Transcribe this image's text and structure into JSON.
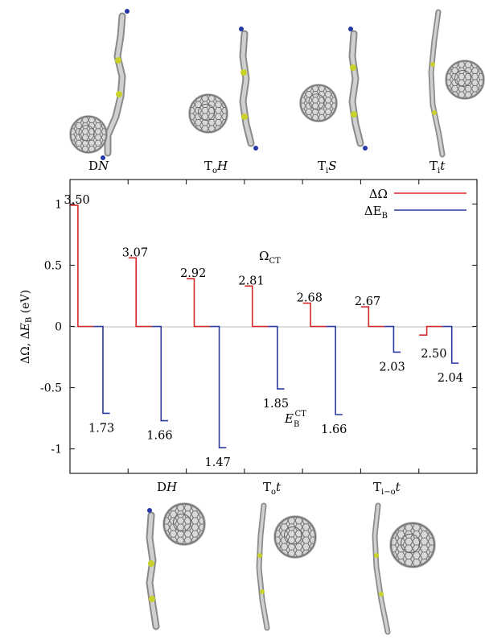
{
  "chart_data": {
    "type": "line",
    "ylabel": "ΔΩ, ΔE_B (eV)",
    "ylim": [
      -1.2,
      1.2
    ],
    "yticks": [
      -1,
      -0.5,
      0,
      0.5,
      1
    ],
    "ytick_labels": [
      "-1",
      "-0.5",
      "0",
      "0.5",
      "1"
    ],
    "xlim": [
      0,
      7
    ],
    "x_tick_positions": [
      1,
      2,
      3,
      4,
      5,
      6,
      7
    ],
    "grid": false,
    "legend_position": "top-right",
    "series": [
      {
        "name": "ΔΩ",
        "color": "#d62728",
        "values": [
          0.99,
          0.56,
          0.39,
          0.33,
          0.19,
          0.16,
          -0.07
        ]
      },
      {
        "name": "ΔE_B",
        "color": "#2b3a9e",
        "values": [
          -0.71,
          -0.77,
          -0.99,
          -0.51,
          -0.72,
          -0.21,
          -0.3
        ]
      }
    ],
    "value_labels": {
      "omega_ct": [
        "3.50",
        "3.07",
        "2.92",
        "2.81",
        "2.68",
        "2.67",
        "2.50"
      ],
      "eb_ct": [
        "1.73",
        "1.66",
        "1.47",
        "1.85",
        "1.66",
        "2.03",
        "2.04"
      ]
    },
    "annotations": {
      "omega_ct": "Ω",
      "omega_ct_sub": "CT",
      "eb_ct": "E",
      "eb_ct_sub": "B",
      "eb_ct_sup": "CT"
    }
  },
  "panel_labels": {
    "top": [
      {
        "main": "D",
        "italic": "N",
        "sub": ""
      },
      {
        "main": "T",
        "sub": "o",
        "italic": "H"
      },
      {
        "main": "T",
        "sub": "i",
        "italic": "S"
      },
      {
        "main": "T",
        "sub": "i",
        "italic": "t"
      }
    ],
    "bottom": [
      {
        "main": "D",
        "italic": "H",
        "sub": ""
      },
      {
        "main": "T",
        "sub": "o",
        "italic": "t"
      },
      {
        "main": "T",
        "sub": "i−o",
        "italic": "t"
      }
    ]
  },
  "legend": {
    "omega": "ΔΩ",
    "eb_main": "ΔE",
    "eb_sub": "B",
    "omega_color": "#d62728",
    "eb_color": "#2b3a9e"
  },
  "ylabel_parts": {
    "a": "ΔΩ, Δ",
    "b": "E",
    "c": "B",
    "d": " (eV)"
  }
}
